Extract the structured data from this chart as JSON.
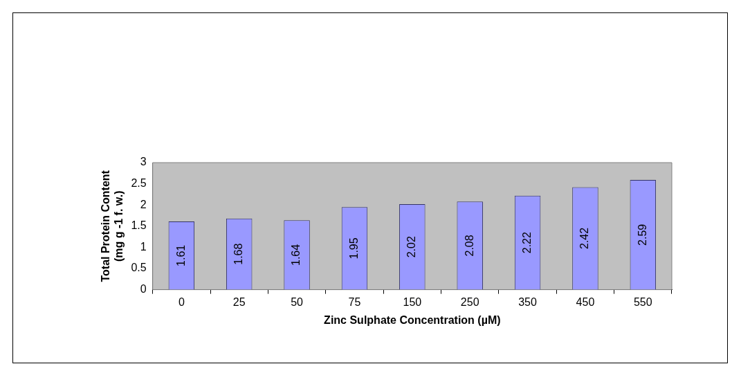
{
  "chart_data": {
    "type": "bar",
    "xlabel": "Zinc Sulphate Concentration (µM)",
    "ylabel": "Total Protein Content\n(mg g -1 f. w.)",
    "categories": [
      "0",
      "25",
      "50",
      "75",
      "150",
      "250",
      "350",
      "450",
      "550"
    ],
    "values": [
      1.61,
      1.68,
      1.64,
      1.95,
      2.02,
      2.08,
      2.22,
      2.42,
      2.59
    ],
    "color": "#9999ff",
    "ylim": [
      0,
      3
    ],
    "yticks": [
      0,
      0.5,
      1,
      1.5,
      2,
      2.5,
      3
    ],
    "grid": false,
    "legend": false,
    "data_labels": true
  }
}
